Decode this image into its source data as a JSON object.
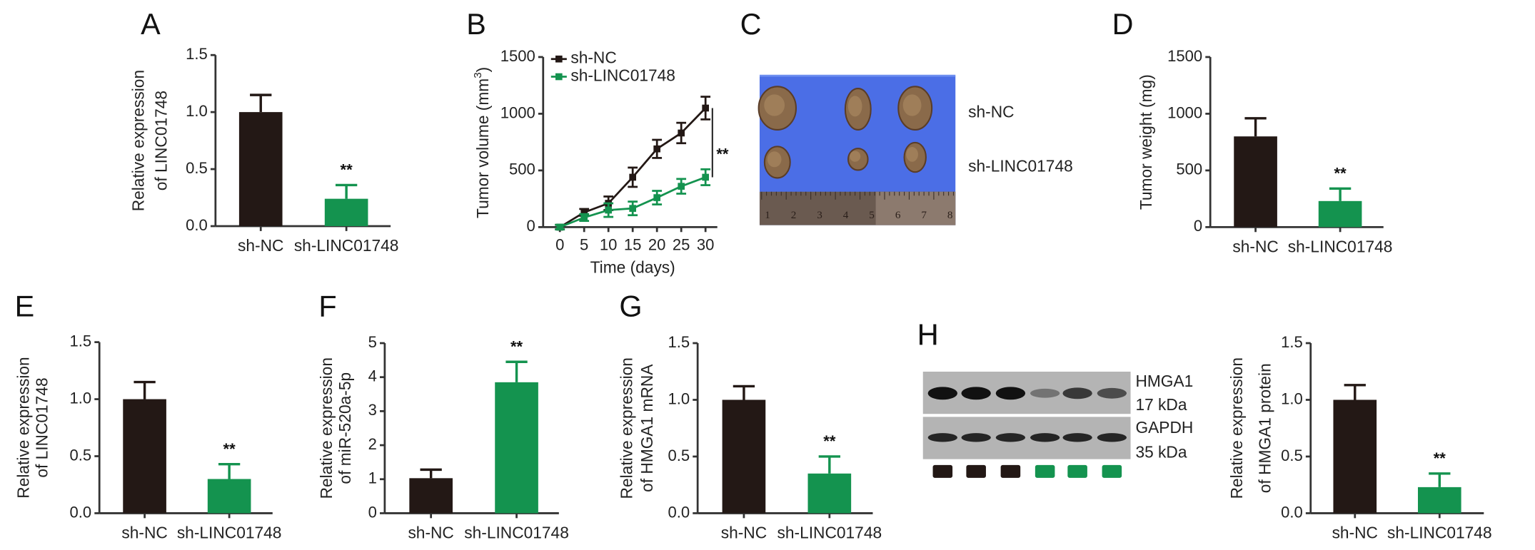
{
  "colors": {
    "control": "#231815",
    "knockdown": "#14934f",
    "photo_bg": "#4b6ee6",
    "blot_bg": "#b4b4b4",
    "axis": "#333333"
  },
  "panels": {
    "A": {
      "letter": "A"
    },
    "B": {
      "letter": "B"
    },
    "C": {
      "letter": "C"
    },
    "D": {
      "letter": "D"
    },
    "E": {
      "letter": "E"
    },
    "F": {
      "letter": "F"
    },
    "G": {
      "letter": "G"
    },
    "H": {
      "letter": "H"
    }
  },
  "photo": {
    "row_labels": [
      "sh-NC",
      "sh-LINC01748"
    ],
    "ruler_numbers": [
      "1",
      "2",
      "3",
      "4",
      "5",
      "6",
      "7",
      "8"
    ]
  },
  "blot": {
    "labels": [
      "HMGA1",
      "17 kDa",
      "GAPDH",
      "35 kDa"
    ],
    "lane_groups": [
      "control",
      "control",
      "control",
      "knockdown",
      "knockdown",
      "knockdown"
    ]
  },
  "chart_data": [
    {
      "id": "A",
      "type": "bar",
      "categories": [
        "sh-NC",
        "sh-LINC01748"
      ],
      "values": [
        1.0,
        0.24
      ],
      "errors": [
        0.15,
        0.12
      ],
      "significance": [
        "",
        "**"
      ],
      "ylabel": [
        "Relative expression",
        "of LINC01748"
      ],
      "ylim": [
        0,
        1.5
      ],
      "yticks": [
        "0.0",
        "0.5",
        "1.0",
        "1.5"
      ]
    },
    {
      "id": "B",
      "type": "line",
      "x": [
        0,
        5,
        10,
        15,
        20,
        25,
        30
      ],
      "xticks": [
        "0",
        "5",
        "10",
        "15",
        "20",
        "25",
        "30"
      ],
      "xlabel": "Time (days)",
      "ylabel": "Tumor volume (mm",
      "ylabel_sup": "3",
      "ylabel_end": ")",
      "ylim": [
        0,
        1500
      ],
      "yticks": [
        "0",
        "500",
        "1000",
        "1500"
      ],
      "significance": "**",
      "legend_position": "top-left",
      "series": [
        {
          "name": "sh-NC",
          "values": [
            0,
            130,
            210,
            440,
            690,
            830,
            1050
          ],
          "errors": [
            20,
            30,
            60,
            85,
            80,
            90,
            100
          ]
        },
        {
          "name": "sh-LINC01748",
          "values": [
            0,
            85,
            150,
            165,
            260,
            360,
            440
          ],
          "errors": [
            20,
            30,
            60,
            60,
            60,
            65,
            70
          ]
        }
      ]
    },
    {
      "id": "D",
      "type": "bar",
      "categories": [
        "sh-NC",
        "sh-LINC01748"
      ],
      "values": [
        800,
        230
      ],
      "errors": [
        160,
        110
      ],
      "significance": [
        "",
        "**"
      ],
      "ylabel": [
        "Tumor weight (mg)"
      ],
      "ylim": [
        0,
        1500
      ],
      "yticks": [
        "0",
        "500",
        "1000",
        "1500"
      ]
    },
    {
      "id": "E",
      "type": "bar",
      "categories": [
        "sh-NC",
        "sh-LINC01748"
      ],
      "values": [
        1.0,
        0.3
      ],
      "errors": [
        0.15,
        0.13
      ],
      "significance": [
        "",
        "**"
      ],
      "ylabel": [
        "Relative expression",
        "of LINC01748"
      ],
      "ylim": [
        0,
        1.5
      ],
      "yticks": [
        "0.0",
        "0.5",
        "1.0",
        "1.5"
      ]
    },
    {
      "id": "F",
      "type": "bar",
      "categories": [
        "sh-NC",
        "sh-LINC01748"
      ],
      "values": [
        1.03,
        3.85
      ],
      "errors": [
        0.25,
        0.6
      ],
      "significance": [
        "",
        "**"
      ],
      "ylabel": [
        "Relative expression",
        "of miR-520a-5p"
      ],
      "ylim": [
        0,
        5
      ],
      "yticks": [
        "0",
        "1",
        "2",
        "3",
        "4",
        "5"
      ]
    },
    {
      "id": "G",
      "type": "bar",
      "categories": [
        "sh-NC",
        "sh-LINC01748"
      ],
      "values": [
        1.0,
        0.35
      ],
      "errors": [
        0.12,
        0.15
      ],
      "significance": [
        "",
        "**"
      ],
      "ylabel": [
        "Relative expression",
        "of HMGA1 mRNA"
      ],
      "ylim": [
        0,
        1.5
      ],
      "yticks": [
        "0.0",
        "0.5",
        "1.0",
        "1.5"
      ]
    },
    {
      "id": "H",
      "type": "bar",
      "categories": [
        "sh-NC",
        "sh-LINC01748"
      ],
      "values": [
        1.0,
        0.23
      ],
      "errors": [
        0.13,
        0.12
      ],
      "significance": [
        "",
        "**"
      ],
      "ylabel": [
        "Relative expression",
        "of HMGA1 protein"
      ],
      "ylim": [
        0,
        1.5
      ],
      "yticks": [
        "0.0",
        "0.5",
        "1.0",
        "1.5"
      ]
    }
  ]
}
